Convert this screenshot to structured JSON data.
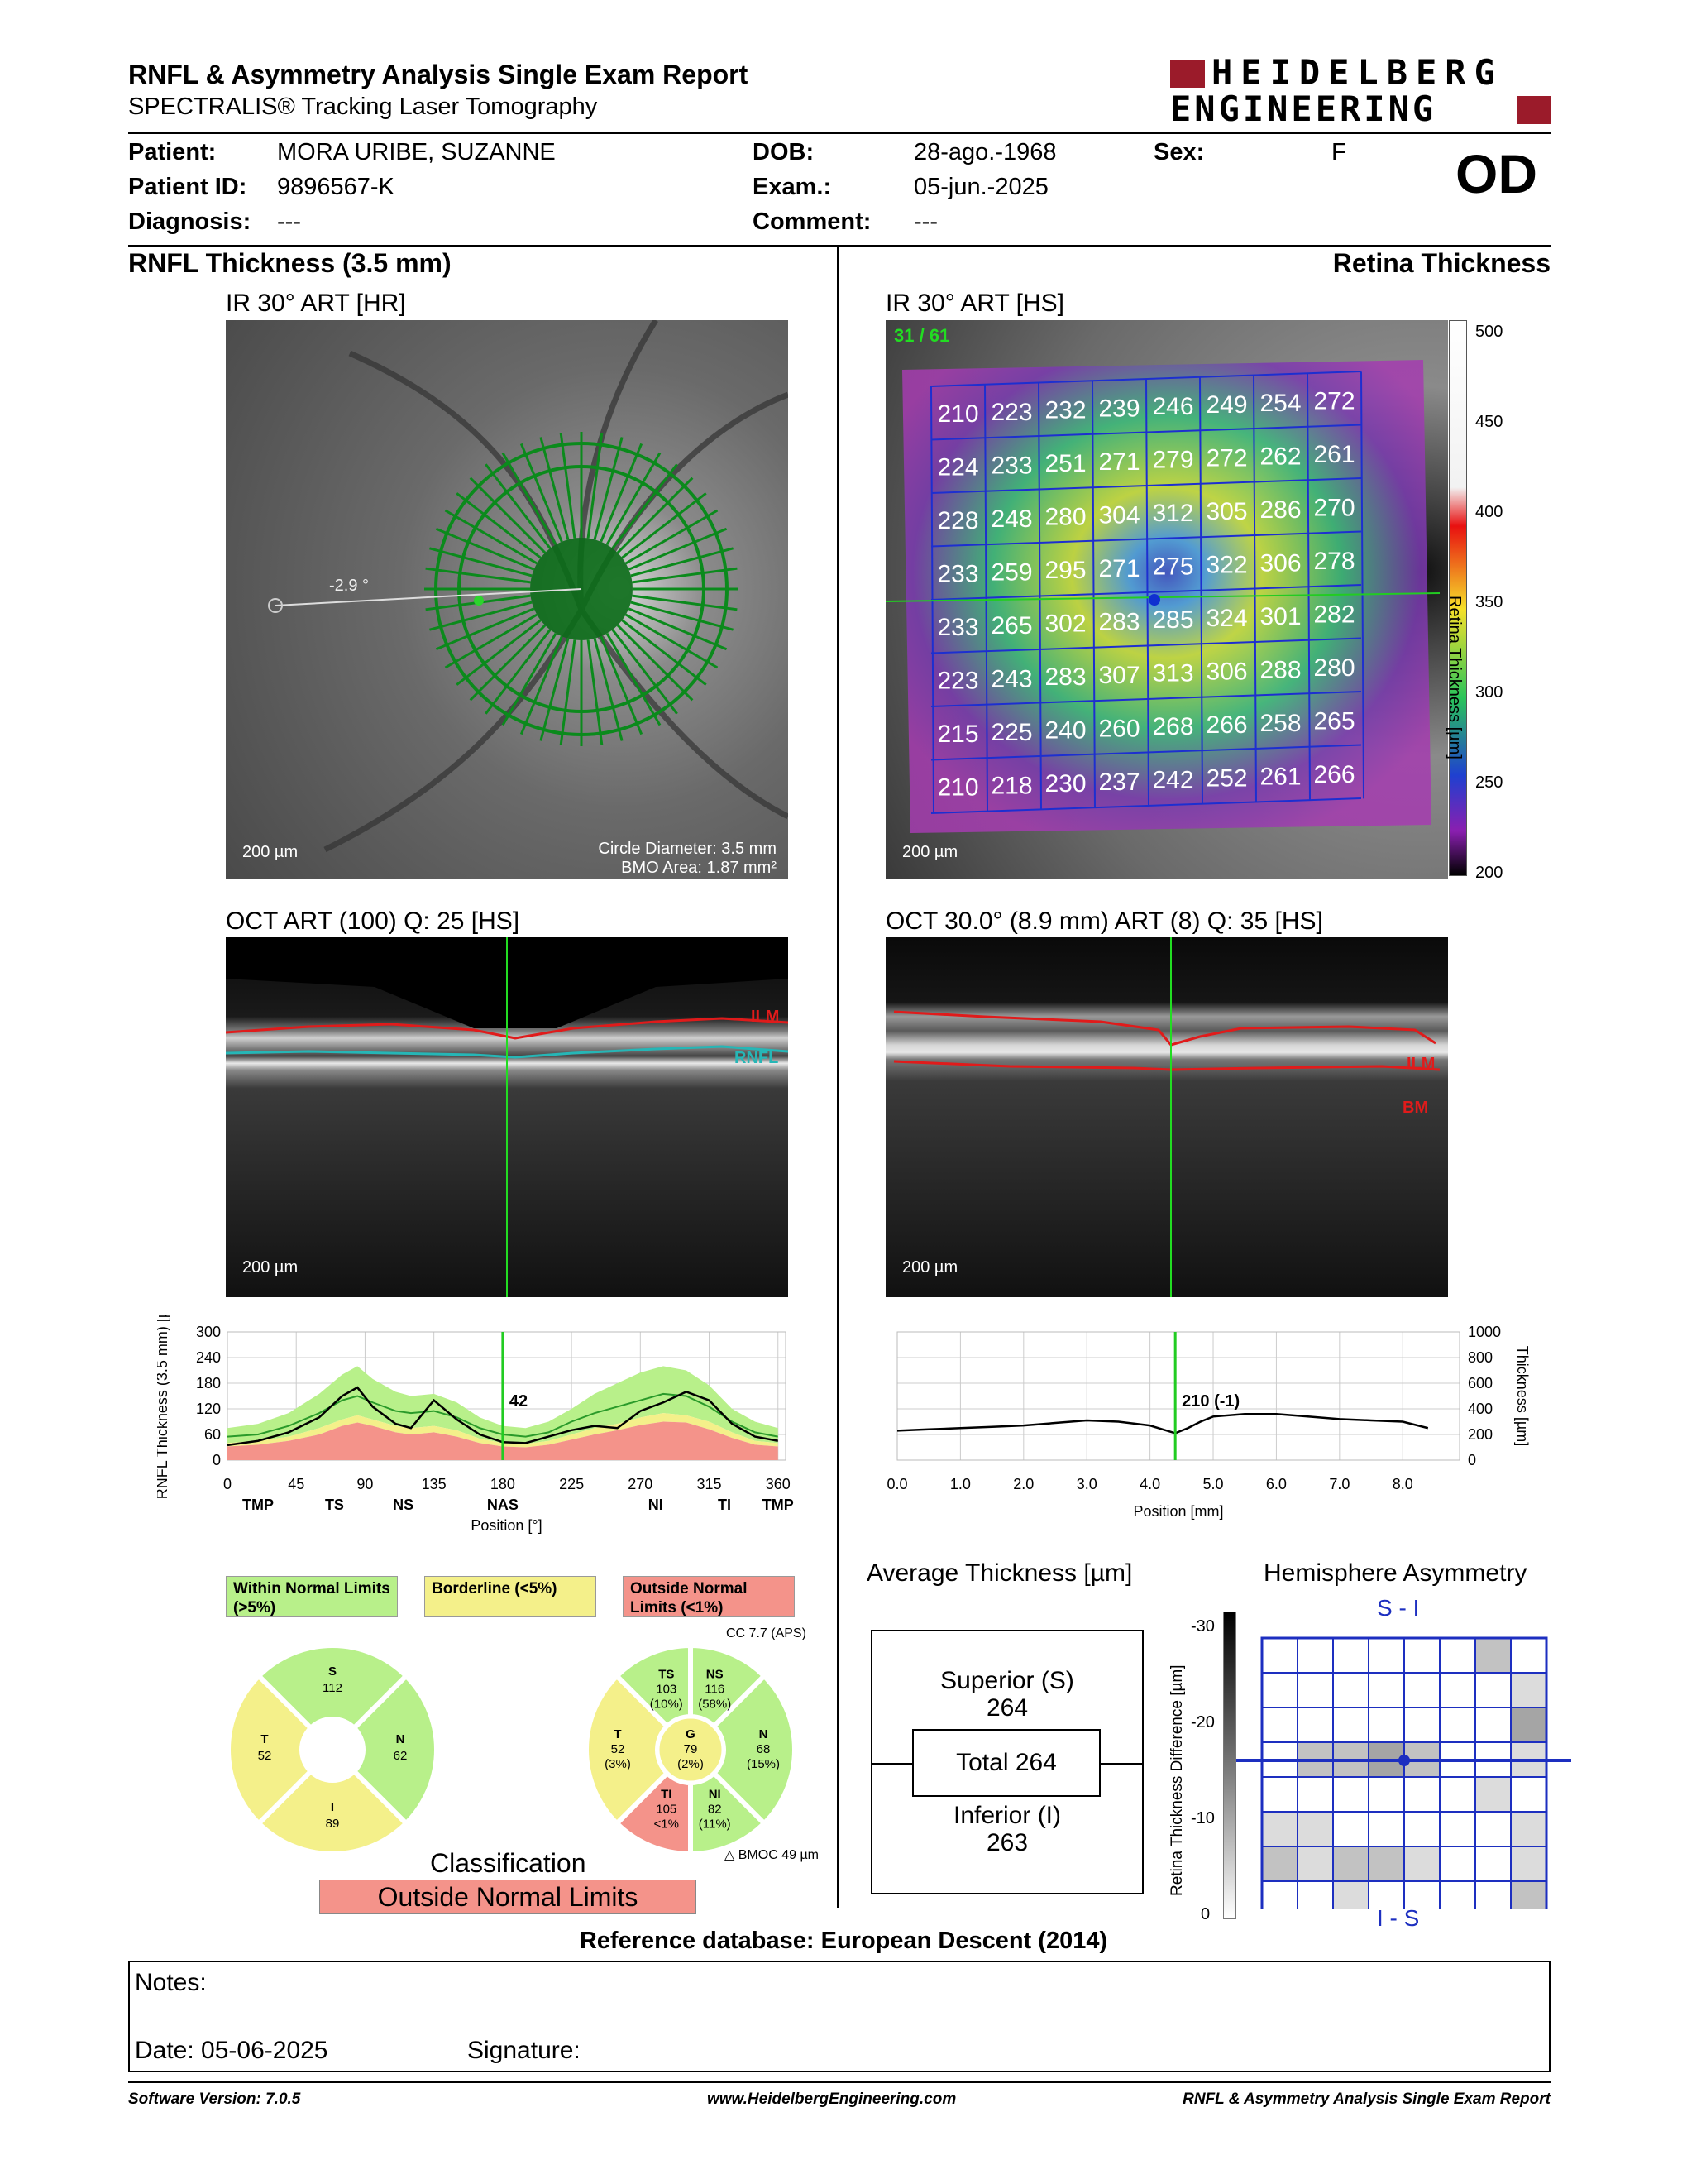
{
  "header": {
    "title": "RNFL & Asymmetry Analysis Single Exam Report",
    "subtitle": "SPECTRALIS® Tracking Laser Tomography",
    "logo_line1": "HEIDELBERG",
    "logo_line2": "ENGINEERING",
    "eye": "OD"
  },
  "patient": {
    "patient_label": "Patient:",
    "patient_value": "MORA URIBE, SUZANNE",
    "id_label": "Patient ID:",
    "id_value": "9896567-K",
    "diag_label": "Diagnosis:",
    "diag_value": "---",
    "dob_label": "DOB:",
    "dob_value": "28-ago.-1968",
    "exam_label": "Exam.:",
    "exam_value": "05-jun.-2025",
    "comment_label": "Comment:",
    "comment_value": "---",
    "sex_label": "Sex:",
    "sex_value": "F"
  },
  "left": {
    "section_title": "RNFL Thickness (3.5 mm)",
    "ir_label": "IR 30° ART [HR]",
    "ir_angle": "-2.9 °",
    "ir_scale": "200 µm",
    "circle_diameter": "Circle Diameter: 3.5 mm",
    "bmo_area": "BMO Area: 1.87 mm²",
    "oct_label": "OCT ART (100) Q: 25 [HS]",
    "oct_scale": "200 µm",
    "ilm": "ILM",
    "rnfl": "RNFL",
    "legend_within": "Within Normal Limits (>5%)",
    "legend_border": "Borderline (<5%)",
    "legend_outside": "Outside Normal Limits (<1%)",
    "cc_label": "CC 7.7 (APS)",
    "bmoc_label": "BMOC 49 µm",
    "classification_label": "Classification",
    "classification_value": "Outside Normal Limits",
    "sectors_simple": [
      {
        "name": "S",
        "value": "112"
      },
      {
        "name": "T",
        "value": "52"
      },
      {
        "name": "N",
        "value": "62"
      },
      {
        "name": "I",
        "value": "89"
      }
    ],
    "sectors_detail": [
      {
        "name": "TS",
        "value": "103",
        "pct": "(10%)"
      },
      {
        "name": "NS",
        "value": "116",
        "pct": "(58%)"
      },
      {
        "name": "T",
        "value": "52",
        "pct": "(3%)"
      },
      {
        "name": "G",
        "value": "79",
        "pct": "(2%)"
      },
      {
        "name": "N",
        "value": "68",
        "pct": "(15%)"
      },
      {
        "name": "TI",
        "value": "105",
        "pct": "<1%"
      },
      {
        "name": "NI",
        "value": "82",
        "pct": "(11%)"
      }
    ]
  },
  "right": {
    "section_title": "Retina Thickness",
    "ir_label": "IR 30° ART [HS]",
    "ir_counter": "31 / 61",
    "ir_scale": "200 µm",
    "colorbar_ticks": [
      "500",
      "450",
      "400",
      "350",
      "300",
      "250",
      "200"
    ],
    "colorbar_title": "Retina Thickness [µm]",
    "grid": [
      [
        "210",
        "223",
        "232",
        "239",
        "246",
        "249",
        "254",
        "272"
      ],
      [
        "224",
        "233",
        "251",
        "271",
        "279",
        "272",
        "262",
        "261"
      ],
      [
        "228",
        "248",
        "280",
        "304",
        "312",
        "305",
        "286",
        "270"
      ],
      [
        "233",
        "259",
        "295",
        "271",
        "275",
        "322",
        "306",
        "278"
      ],
      [
        "233",
        "265",
        "302",
        "283",
        "285",
        "324",
        "301",
        "282"
      ],
      [
        "223",
        "243",
        "283",
        "307",
        "313",
        "306",
        "288",
        "280"
      ],
      [
        "215",
        "225",
        "240",
        "260",
        "268",
        "266",
        "258",
        "265"
      ],
      [
        "210",
        "218",
        "230",
        "237",
        "242",
        "252",
        "261",
        "266"
      ]
    ],
    "oct_label": "OCT 30.0° (8.9 mm) ART (8) Q: 35 [HS]",
    "oct_scale": "200 µm",
    "ilm": "ILM",
    "bm": "BM",
    "avg_title": "Average Thickness [µm]",
    "superior_label": "Superior (S)",
    "superior_value": "264",
    "total_label": "Total 264",
    "inferior_label": "Inferior (I)",
    "inferior_value": "263",
    "asym_title": "Hemisphere Asymmetry",
    "asym_top": "S - I",
    "asym_bottom": "I - S",
    "asym_axis_title": "Retina Thickness Difference [µm]",
    "asym_ticks": [
      "-30",
      "-20",
      "-10",
      "0"
    ],
    "asym_cells": [
      [
        0,
        0,
        0,
        0,
        0,
        0,
        2,
        0
      ],
      [
        0,
        0,
        0,
        0,
        0,
        0,
        0,
        1
      ],
      [
        0,
        0,
        0,
        0,
        0,
        0,
        0,
        3
      ],
      [
        0,
        2,
        2,
        3,
        2,
        0,
        0,
        1
      ],
      [
        0,
        0,
        0,
        0,
        0,
        0,
        1,
        0
      ],
      [
        1,
        1,
        0,
        0,
        0,
        0,
        0,
        1
      ],
      [
        2,
        1,
        2,
        2,
        1,
        0,
        0,
        1
      ],
      [
        0,
        0,
        1,
        0,
        0,
        0,
        0,
        2
      ]
    ]
  },
  "chart_data": [
    {
      "type": "line",
      "title": "",
      "xlabel": "Position [°]",
      "ylabel": "RNFL Thickness (3.5 mm) [µm]",
      "xlim": [
        0,
        365
      ],
      "ylim": [
        0,
        300
      ],
      "xticks": [
        "0",
        "45",
        "90",
        "135",
        "180",
        "225",
        "270",
        "315",
        "360"
      ],
      "yticks": [
        "0",
        "60",
        "120",
        "180",
        "240",
        "300"
      ],
      "sector_labels": [
        "TMP",
        "TS",
        "NS",
        "NAS",
        "NI",
        "TI",
        "TMP"
      ],
      "sector_positions": [
        20,
        70,
        115,
        180,
        280,
        325,
        360
      ],
      "cursor_x": 180,
      "cursor_label": "42",
      "x": [
        0,
        20,
        40,
        60,
        75,
        85,
        95,
        110,
        120,
        135,
        150,
        165,
        180,
        195,
        210,
        225,
        240,
        255,
        270,
        285,
        300,
        315,
        330,
        345,
        360
      ],
      "patient": [
        35,
        45,
        65,
        100,
        150,
        170,
        125,
        85,
        75,
        140,
        95,
        60,
        42,
        40,
        55,
        70,
        80,
        75,
        115,
        135,
        160,
        140,
        85,
        55,
        45
      ],
      "normal_mean": [
        55,
        60,
        80,
        110,
        140,
        150,
        135,
        115,
        110,
        115,
        100,
        75,
        60,
        55,
        65,
        90,
        110,
        125,
        140,
        155,
        150,
        125,
        90,
        65,
        55
      ],
      "green_upper": [
        75,
        85,
        110,
        155,
        200,
        220,
        190,
        160,
        150,
        155,
        135,
        100,
        80,
        75,
        90,
        120,
        155,
        180,
        205,
        220,
        210,
        175,
        120,
        90,
        75
      ],
      "green_lower": [
        40,
        45,
        55,
        75,
        95,
        105,
        95,
        80,
        75,
        80,
        70,
        50,
        40,
        38,
        45,
        60,
        75,
        85,
        100,
        110,
        105,
        90,
        65,
        45,
        40
      ],
      "yellow_lower": [
        32,
        36,
        45,
        60,
        80,
        88,
        80,
        65,
        60,
        65,
        55,
        40,
        32,
        30,
        36,
        48,
        60,
        70,
        82,
        90,
        88,
        72,
        52,
        36,
        32
      ],
      "red_lower": [
        25,
        28,
        35,
        48,
        65,
        70,
        62,
        52,
        48,
        52,
        44,
        32,
        25,
        24,
        28,
        38,
        48,
        55,
        65,
        72,
        70,
        58,
        42,
        28,
        25
      ]
    },
    {
      "type": "line",
      "title": "",
      "xlabel": "Position [mm]",
      "ylabel": "Thickness [µm]",
      "xlim": [
        0,
        8.9
      ],
      "ylim": [
        0,
        1000
      ],
      "xticks": [
        "0.0",
        "1.0",
        "2.0",
        "3.0",
        "4.0",
        "5.0",
        "6.0",
        "7.0",
        "8.0"
      ],
      "yticks": [
        "0",
        "200",
        "400",
        "600",
        "800",
        "1000"
      ],
      "cursor_x": 4.4,
      "cursor_label": "210 (-1)",
      "x": [
        0,
        0.5,
        1,
        1.5,
        2,
        2.5,
        3,
        3.5,
        4,
        4.2,
        4.4,
        4.6,
        4.8,
        5,
        5.5,
        6,
        6.5,
        7,
        7.5,
        8,
        8.4
      ],
      "values": [
        230,
        240,
        250,
        260,
        270,
        290,
        310,
        300,
        270,
        240,
        210,
        250,
        300,
        340,
        360,
        360,
        340,
        320,
        310,
        300,
        250
      ]
    }
  ],
  "footer": {
    "reference_db": "Reference database: European Descent (2014)",
    "notes_label": "Notes:",
    "date_label": "Date: 05-06-2025",
    "signature_label": "Signature:",
    "software": "Software Version: 7.0.5",
    "website": "www.HeidelbergEngineering.com",
    "report_name": "RNFL & Asymmetry Analysis Single Exam Report"
  }
}
